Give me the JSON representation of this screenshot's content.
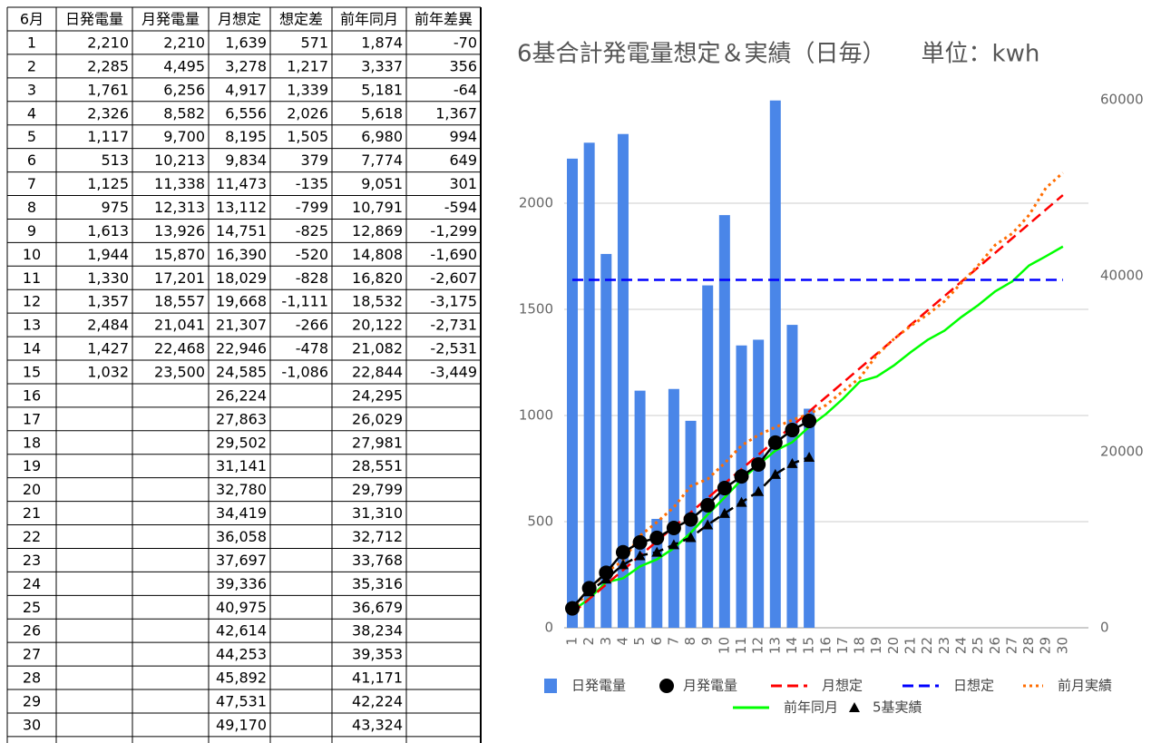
{
  "table": {
    "header": [
      "6月",
      "日発電量",
      "月発電量",
      "月想定",
      "想定差",
      "前年同月",
      "前年差異"
    ],
    "rows": [
      [
        "1",
        "2,210",
        "2,210",
        "1,639",
        "571",
        "1,874",
        "-70"
      ],
      [
        "2",
        "2,285",
        "4,495",
        "3,278",
        "1,217",
        "3,337",
        "356"
      ],
      [
        "3",
        "1,761",
        "6,256",
        "4,917",
        "1,339",
        "5,181",
        "-64"
      ],
      [
        "4",
        "2,326",
        "8,582",
        "6,556",
        "2,026",
        "5,618",
        "1,367"
      ],
      [
        "5",
        "1,117",
        "9,700",
        "8,195",
        "1,505",
        "6,980",
        "994"
      ],
      [
        "6",
        "513",
        "10,213",
        "9,834",
        "379",
        "7,774",
        "649"
      ],
      [
        "7",
        "1,125",
        "11,338",
        "11,473",
        "-135",
        "9,051",
        "301"
      ],
      [
        "8",
        "975",
        "12,313",
        "13,112",
        "-799",
        "10,791",
        "-594"
      ],
      [
        "9",
        "1,613",
        "13,926",
        "14,751",
        "-825",
        "12,869",
        "-1,299"
      ],
      [
        "10",
        "1,944",
        "15,870",
        "16,390",
        "-520",
        "14,808",
        "-1,690"
      ],
      [
        "11",
        "1,330",
        "17,201",
        "18,029",
        "-828",
        "16,820",
        "-2,607"
      ],
      [
        "12",
        "1,357",
        "18,557",
        "19,668",
        "-1,111",
        "18,532",
        "-3,175"
      ],
      [
        "13",
        "2,484",
        "21,041",
        "21,307",
        "-266",
        "20,122",
        "-2,731"
      ],
      [
        "14",
        "1,427",
        "22,468",
        "22,946",
        "-478",
        "21,082",
        "-2,531"
      ],
      [
        "15",
        "1,032",
        "23,500",
        "24,585",
        "-1,086",
        "22,844",
        "-3,449"
      ],
      [
        "16",
        null,
        null,
        "26,224",
        null,
        "24,295",
        null
      ],
      [
        "17",
        null,
        null,
        "27,863",
        null,
        "26,029",
        null
      ],
      [
        "18",
        null,
        null,
        "29,502",
        null,
        "27,981",
        null
      ],
      [
        "19",
        null,
        null,
        "31,141",
        null,
        "28,551",
        null
      ],
      [
        "20",
        null,
        null,
        "32,780",
        null,
        "29,799",
        null
      ],
      [
        "21",
        null,
        null,
        "34,419",
        null,
        "31,310",
        null
      ],
      [
        "22",
        null,
        null,
        "36,058",
        null,
        "32,712",
        null
      ],
      [
        "23",
        null,
        null,
        "37,697",
        null,
        "33,768",
        null
      ],
      [
        "24",
        null,
        null,
        "39,336",
        null,
        "35,316",
        null
      ],
      [
        "25",
        null,
        null,
        "40,975",
        null,
        "36,679",
        null
      ],
      [
        "26",
        null,
        null,
        "42,614",
        null,
        "38,234",
        null
      ],
      [
        "27",
        null,
        null,
        "44,253",
        null,
        "39,353",
        null
      ],
      [
        "28",
        null,
        null,
        "45,892",
        null,
        "41,171",
        null
      ],
      [
        "29",
        null,
        null,
        "47,531",
        null,
        "42,224",
        null
      ],
      [
        "30",
        null,
        null,
        "49,170",
        null,
        "43,324",
        null
      ]
    ]
  },
  "chart_data": {
    "type": "combo",
    "title": "6基合計発電量想定＆実績（日毎）　　単位：kwh",
    "categories": [
      "1",
      "2",
      "3",
      "4",
      "5",
      "6",
      "7",
      "8",
      "9",
      "10",
      "11",
      "12",
      "13",
      "14",
      "15",
      "16",
      "17",
      "18",
      "19",
      "20",
      "21",
      "22",
      "23",
      "24",
      "25",
      "26",
      "27",
      "28",
      "29",
      "30"
    ],
    "ylim": [
      0,
      2500
    ],
    "yticks": [
      0,
      500,
      1000,
      1500,
      2000
    ],
    "y2lim": [
      0,
      60000
    ],
    "y2ticks": [
      0,
      20000,
      40000,
      60000
    ],
    "grid": true,
    "series": [
      {
        "name": "日発電量",
        "type": "bar",
        "color": "#4a86e8",
        "axis": "y",
        "values": [
          2210,
          2285,
          1761,
          2326,
          1117,
          513,
          1125,
          975,
          1613,
          1944,
          1330,
          1357,
          2484,
          1427,
          1032,
          null,
          null,
          null,
          null,
          null,
          null,
          null,
          null,
          null,
          null,
          null,
          null,
          null,
          null,
          null
        ]
      },
      {
        "name": "月発電量",
        "type": "line",
        "marker": "circle",
        "dash": "solid",
        "color": "#000000",
        "axis": "y2",
        "values": [
          2210,
          4495,
          6256,
          8582,
          9700,
          10213,
          11338,
          12313,
          13926,
          15870,
          17201,
          18557,
          21041,
          22468,
          23500,
          null,
          null,
          null,
          null,
          null,
          null,
          null,
          null,
          null,
          null,
          null,
          null,
          null,
          null,
          null
        ]
      },
      {
        "name": "月想定",
        "type": "line",
        "dash": "dashed",
        "color": "#ff0000",
        "axis": "y2",
        "values": [
          1639,
          3278,
          4917,
          6556,
          8195,
          9834,
          11473,
          13112,
          14751,
          16390,
          18029,
          19668,
          21307,
          22946,
          24585,
          26224,
          27863,
          29502,
          31141,
          32780,
          34419,
          36058,
          37697,
          39336,
          40975,
          42614,
          44253,
          45892,
          47531,
          49170
        ]
      },
      {
        "name": "日想定",
        "type": "line",
        "dash": "dashed",
        "color": "#0000ff",
        "axis": "y",
        "values": [
          1639,
          1639,
          1639,
          1639,
          1639,
          1639,
          1639,
          1639,
          1639,
          1639,
          1639,
          1639,
          1639,
          1639,
          1639,
          1639,
          1639,
          1639,
          1639,
          1639,
          1639,
          1639,
          1639,
          1639,
          1639,
          1639,
          1639,
          1639,
          1639,
          1639
        ]
      },
      {
        "name": "前月実績",
        "type": "line",
        "dash": "dotted",
        "color": "#ff6d01",
        "axis": "y2",
        "values": [
          2050,
          4200,
          6350,
          7600,
          10460,
          12000,
          13700,
          16100,
          16900,
          18700,
          20700,
          21900,
          22800,
          23600,
          24300,
          25300,
          26900,
          28400,
          31000,
          32800,
          34300,
          35600,
          37100,
          39200,
          41200,
          43500,
          44800,
          46900,
          50000,
          51700
        ]
      },
      {
        "name": "前年同月",
        "type": "line",
        "dash": "solid",
        "color": "#00ff00",
        "axis": "y2",
        "values": [
          1874,
          3337,
          5181,
          5618,
          6980,
          7774,
          9051,
          10791,
          12869,
          14808,
          16820,
          18532,
          20122,
          21082,
          22844,
          24295,
          26029,
          27981,
          28551,
          29799,
          31310,
          32712,
          33768,
          35316,
          36679,
          38234,
          39353,
          41171,
          42224,
          43324
        ]
      },
      {
        "name": "5基実績",
        "type": "line",
        "marker": "triangle",
        "dash": "dashed",
        "color": "#000000",
        "axis": "y2",
        "values": [
          2460,
          4100,
          5540,
          7180,
          8200,
          8600,
          9440,
          10260,
          11700,
          13000,
          14260,
          15490,
          17440,
          18670,
          19380,
          null,
          null,
          null,
          null,
          null,
          null,
          null,
          null,
          null,
          null,
          null,
          null,
          null,
          null,
          null
        ]
      }
    ]
  }
}
